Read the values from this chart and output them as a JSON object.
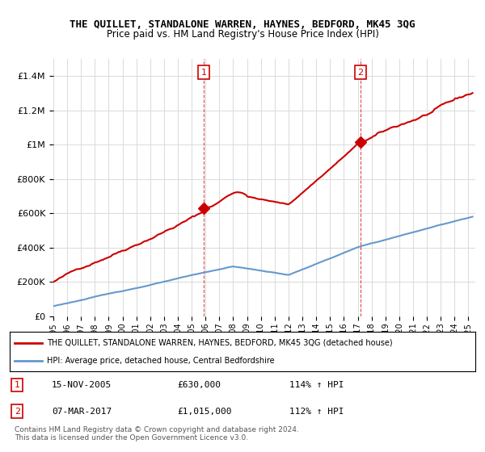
{
  "title": "THE QUILLET, STANDALONE WARREN, HAYNES, BEDFORD, MK45 3QG",
  "subtitle": "Price paid vs. HM Land Registry's House Price Index (HPI)",
  "legend_line1": "THE QUILLET, STANDALONE WARREN, HAYNES, BEDFORD, MK45 3QG (detached house)",
  "legend_line2": "HPI: Average price, detached house, Central Bedfordshire",
  "transaction1_date": "15-NOV-2005",
  "transaction1_price": "£630,000",
  "transaction1_hpi": "114% ↑ HPI",
  "transaction1_year": 2005.88,
  "transaction1_value": 630000,
  "transaction2_date": "07-MAR-2017",
  "transaction2_price": "£1,015,000",
  "transaction2_hpi": "112% ↑ HPI",
  "transaction2_year": 2017.18,
  "transaction2_value": 1015000,
  "footer": "Contains HM Land Registry data © Crown copyright and database right 2024.\nThis data is licensed under the Open Government Licence v3.0.",
  "red_color": "#cc0000",
  "blue_color": "#6699cc",
  "background_color": "#ffffff",
  "grid_color": "#dddddd",
  "ylim_max": 1500000,
  "xlim_start": 1995,
  "xlim_end": 2025.5
}
